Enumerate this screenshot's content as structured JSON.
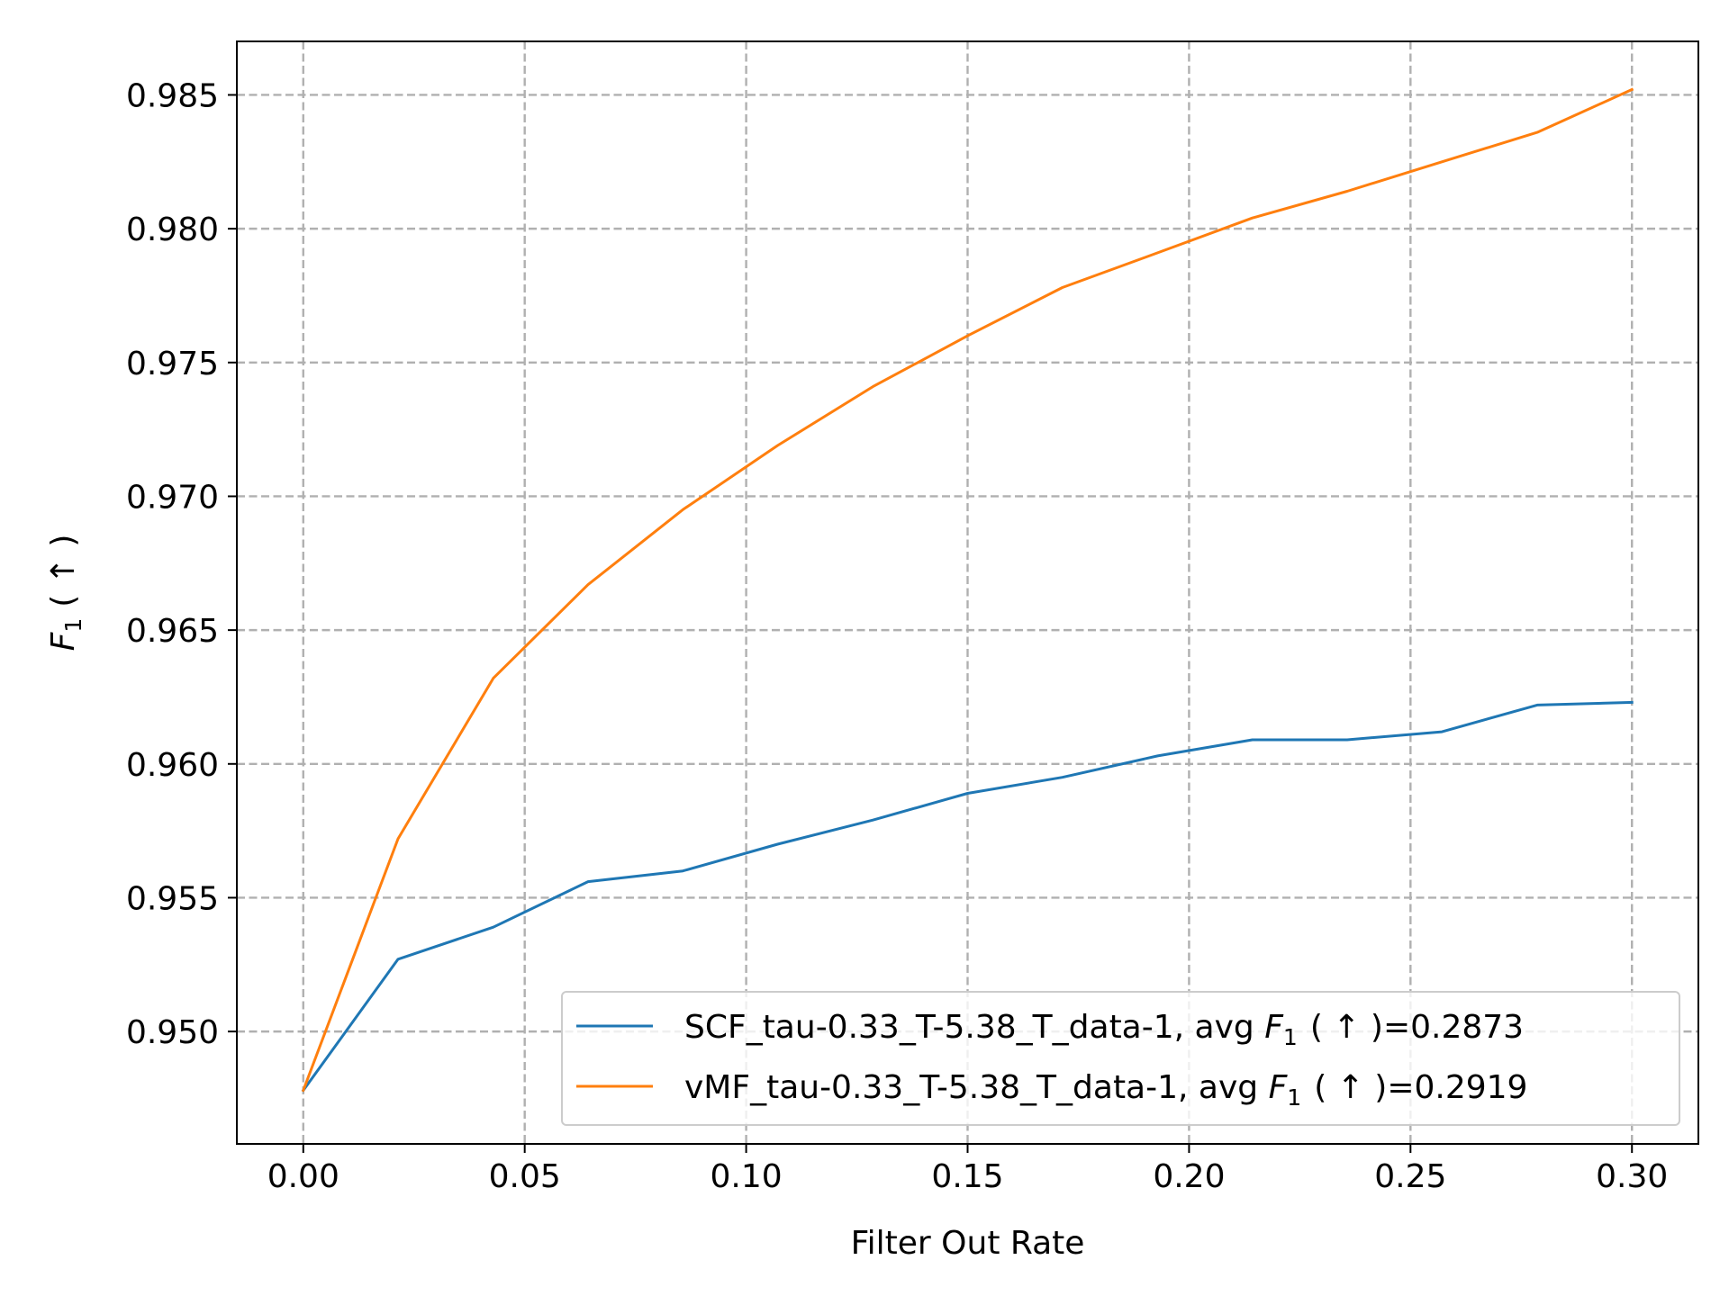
{
  "chart_data": {
    "type": "line",
    "xlabel": "Filter Out Rate",
    "ylabel": {
      "base": "F",
      "sub": "1",
      "suffix": "( ↑ )"
    },
    "xlim": [
      -0.015,
      0.315
    ],
    "ylim": [
      0.9458,
      0.987
    ],
    "xticks": [
      0.0,
      0.05,
      0.1,
      0.15,
      0.2,
      0.25,
      0.3
    ],
    "xtick_labels": [
      "0.00",
      "0.05",
      "0.10",
      "0.15",
      "0.20",
      "0.25",
      "0.30"
    ],
    "yticks": [
      0.95,
      0.955,
      0.96,
      0.965,
      0.97,
      0.975,
      0.98,
      0.985
    ],
    "ytick_labels": [
      "0.950",
      "0.955",
      "0.960",
      "0.965",
      "0.970",
      "0.975",
      "0.980",
      "0.985"
    ],
    "grid": true,
    "legend_position": "bottom-right",
    "x": [
      0.0,
      0.0214,
      0.0429,
      0.0643,
      0.0857,
      0.1071,
      0.1286,
      0.15,
      0.1714,
      0.1929,
      0.2143,
      0.2357,
      0.2571,
      0.2786,
      0.3
    ],
    "series": [
      {
        "name": "SCF_tau-0.33_T-5.38_T_data-1",
        "legend": {
          "prefix": "SCF_tau-0.33_T-5.38_T_data-1, avg ",
          "base": "F",
          "sub": "1",
          "suffix": "( ↑ )=0.2873"
        },
        "color": "#1f77b4",
        "values": [
          0.9478,
          0.9527,
          0.9539,
          0.9556,
          0.956,
          0.957,
          0.9579,
          0.9589,
          0.9595,
          0.9603,
          0.9609,
          0.9609,
          0.9612,
          0.9622,
          0.9623
        ]
      },
      {
        "name": "vMF_tau-0.33_T-5.38_T_data-1",
        "legend": {
          "prefix": "vMF_tau-0.33_T-5.38_T_data-1, avg ",
          "base": "F",
          "sub": "1",
          "suffix": "( ↑ )=0.2919"
        },
        "color": "#ff7f0e",
        "values": [
          0.9478,
          0.9572,
          0.9632,
          0.9667,
          0.9695,
          0.9719,
          0.9741,
          0.976,
          0.9778,
          0.9791,
          0.9804,
          0.9814,
          0.9825,
          0.9836,
          0.9852
        ]
      }
    ]
  }
}
